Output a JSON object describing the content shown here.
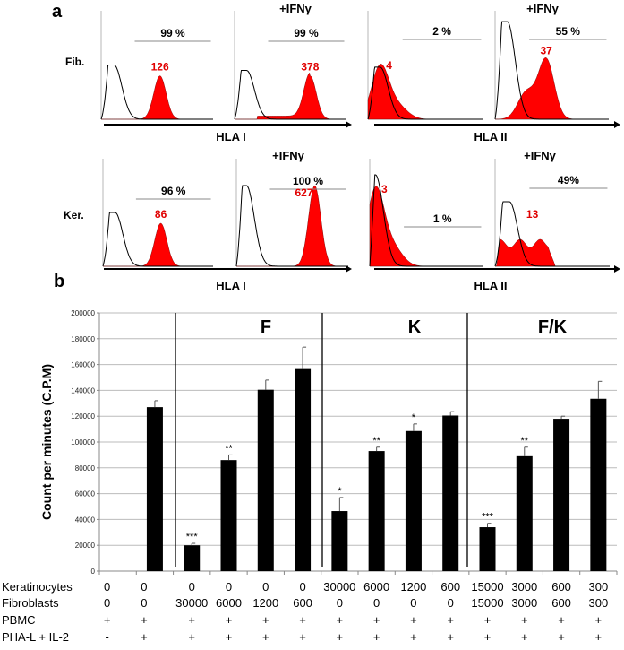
{
  "chart_data": [
    {
      "type": "histogram",
      "panel_label": "a",
      "row_labels": [
        "Fib.",
        "Ker."
      ],
      "axis_labels": [
        "HLA I",
        "HLA II"
      ],
      "treatment_label": "+IFNγ",
      "colors": {
        "positive": "#ff0000",
        "isotype": "#000000"
      },
      "panels": [
        {
          "row": "Fib.",
          "marker": "HLA I",
          "ifng": false,
          "percent": "99 %",
          "mfi": "126",
          "iso_peak": 0.46,
          "pos_peak": 2.1,
          "pos_height": 0.4,
          "iso_height": 0.5
        },
        {
          "row": "Fib.",
          "marker": "HLA I",
          "ifng": true,
          "percent": "99 %",
          "mfi": "378",
          "iso_peak": 0.43,
          "pos_peak": 2.7,
          "pos_height": 0.4,
          "iso_height": 0.45
        },
        {
          "row": "Fib.",
          "marker": "HLA II",
          "ifng": false,
          "percent": "2 %",
          "mfi": "4",
          "iso_peak": 0.42,
          "pos_peak": 0.42,
          "pos_height": 0.48,
          "iso_height": 0.48
        },
        {
          "row": "Fib.",
          "marker": "HLA II",
          "ifng": true,
          "percent": "55 %",
          "mfi": "37",
          "iso_peak": 0.43,
          "pos_peak": 1.8,
          "pos_height": 0.55,
          "iso_height": 0.9
        },
        {
          "row": "Ker.",
          "marker": "HLA I",
          "ifng": false,
          "percent": "96 %",
          "mfi": "86",
          "iso_peak": 0.44,
          "pos_peak": 2.1,
          "pos_height": 0.4,
          "iso_height": 0.5
        },
        {
          "row": "Ker.",
          "marker": "HLA I",
          "ifng": true,
          "percent": "100 %",
          "mfi": "627",
          "iso_peak": 0.36,
          "pos_peak": 2.8,
          "pos_height": 0.75,
          "iso_height": 0.75
        },
        {
          "row": "Ker.",
          "marker": "HLA II",
          "ifng": false,
          "percent": "1 %",
          "mfi": "3",
          "iso_peak": 0.2,
          "pos_peak": 0.2,
          "pos_height": 0.7,
          "iso_height": 0.85
        },
        {
          "row": "Ker.",
          "marker": "HLA II",
          "ifng": true,
          "percent": "49%",
          "mfi": "13",
          "iso_peak": 0.5,
          "pos_peak": 1.3,
          "pos_height": 0.25,
          "iso_height": 0.6
        }
      ]
    },
    {
      "type": "bar",
      "panel_label": "b",
      "ylabel": "Count per minutes (C.P.M)",
      "ylim": [
        0,
        200000
      ],
      "yticks": [
        "0",
        "20000",
        "40000",
        "60000",
        "80000",
        "100000",
        "120000",
        "140000",
        "160000",
        "180000",
        "200000"
      ],
      "grid": true,
      "group_labels": [
        "F",
        "K",
        "F/K"
      ],
      "bar_color": "#000000",
      "values": [
        0,
        127000,
        20000,
        86000,
        140500,
        156500,
        46500,
        93000,
        108500,
        120500,
        34000,
        89000,
        118000,
        133500
      ],
      "error_tops": [
        0,
        132000,
        21500,
        90000,
        148000,
        173500,
        57000,
        96000,
        114000,
        123500,
        37000,
        96000,
        120000,
        147000
      ],
      "significance": [
        "",
        "",
        "***",
        "**",
        "",
        "",
        "*",
        "**",
        "*",
        "",
        "***",
        "**",
        "",
        ""
      ],
      "table": [
        {
          "label": "Keratinocytes",
          "values": [
            "0",
            "0",
            "0",
            "0",
            "0",
            "0",
            "30000",
            "6000",
            "1200",
            "600",
            "15000",
            "3000",
            "600",
            "300"
          ]
        },
        {
          "label": "Fibroblasts",
          "values": [
            "0",
            "0",
            "30000",
            "6000",
            "1200",
            "600",
            "0",
            "0",
            "0",
            "0",
            "15000",
            "3000",
            "600",
            "300"
          ]
        },
        {
          "label": "PBMC",
          "values": [
            "+",
            "+",
            "+",
            "+",
            "+",
            "+",
            "+",
            "+",
            "+",
            "+",
            "+",
            "+",
            "+",
            "+"
          ]
        },
        {
          "label": "PHA-L + IL-2",
          "values": [
            "-",
            "+",
            "+",
            "+",
            "+",
            "+",
            "+",
            "+",
            "+",
            "+",
            "+",
            "+",
            "+",
            "+"
          ]
        }
      ]
    }
  ]
}
